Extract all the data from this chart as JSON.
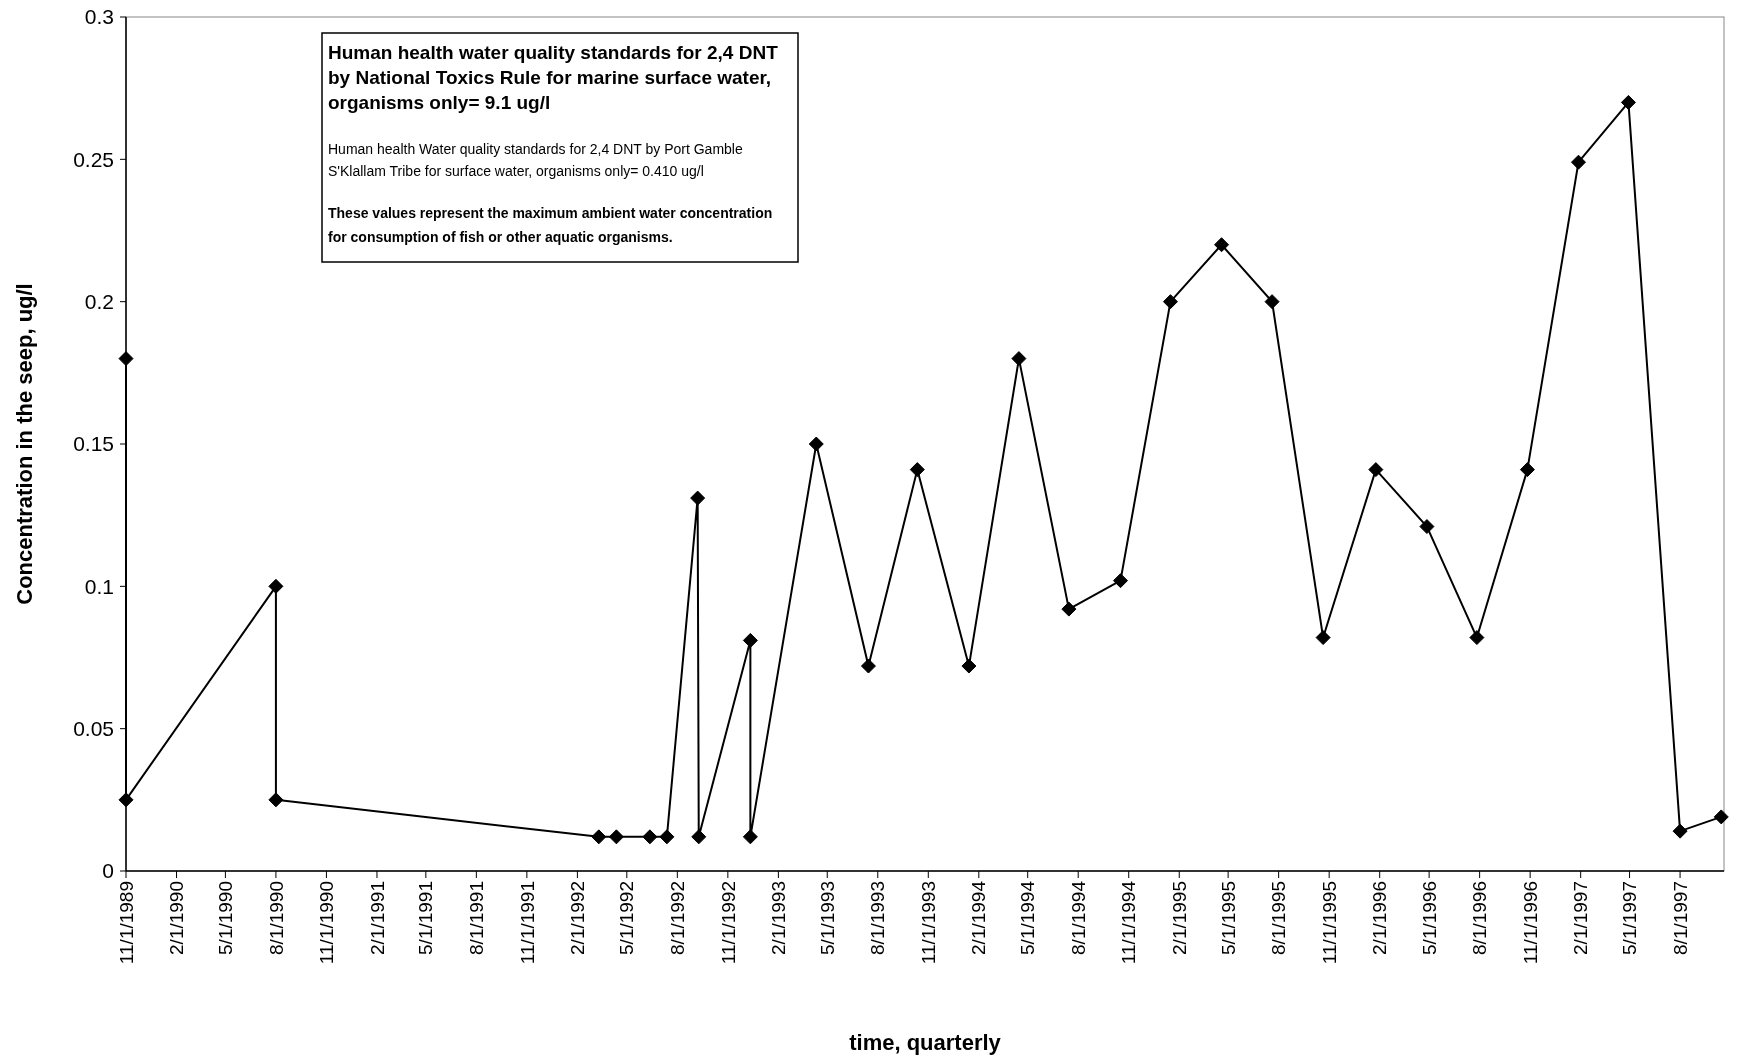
{
  "chart_data": {
    "type": "line",
    "xlabel": "time, quarterly",
    "ylabel": "Concentration in the seep, ug/l",
    "annotations": [
      "Human health water quality standards for 2,4 DNT by National Toxics Rule for marine surface water, organisms only= 9.1 ug/l",
      "Human health Water quality standards for 2,4 DNT by Port Gamble S'Klallam Tribe for surface water, organisms only= 0.410 ug/l",
      "These values represent the maximum ambient water concentration for consumption of fish or other aquatic organisms."
    ],
    "x": [
      "1989-11-01",
      "1989-11-01",
      "1990-08-01",
      "1990-08-01",
      "1992-03-11",
      "1992-04-12",
      "1992-06-12",
      "1992-07-13",
      "1992-09-07",
      "1992-09-09",
      "1992-12-12",
      "1992-12-12",
      "1993-04-11",
      "1993-07-15",
      "1993-10-12",
      "1994-01-14",
      "1994-04-15",
      "1994-07-15",
      "1994-10-17",
      "1995-01-16",
      "1995-04-19",
      "1995-07-20",
      "1995-10-21",
      "1996-01-25",
      "1996-04-27",
      "1996-07-27",
      "1996-10-27",
      "1997-01-28",
      "1997-04-29",
      "1997-08-01",
      "1997-10-15"
    ],
    "series": [
      {
        "color": "#000000",
        "values": [
          0.18,
          0.025,
          0.1,
          0.025,
          0.012,
          0.012,
          0.012,
          0.012,
          0.131,
          0.012,
          0.081,
          0.012,
          0.15,
          0.072,
          0.141,
          0.072,
          0.18,
          0.092,
          0.102,
          0.2,
          0.22,
          0.2,
          0.082,
          0.141,
          0.121,
          0.082,
          0.141,
          0.249,
          0.27,
          0.014,
          0.019
        ]
      }
    ],
    "xlim": [
      "1989-11-01",
      "1997-10-20"
    ],
    "xticks": [
      {
        "value": "1989-11-01",
        "label": "11/1/1989"
      },
      {
        "value": "1990-02-01",
        "label": "2/1/1990"
      },
      {
        "value": "1990-05-01",
        "label": "5/1/1990"
      },
      {
        "value": "1990-08-01",
        "label": "8/1/1990"
      },
      {
        "value": "1990-11-01",
        "label": "11/1/1990"
      },
      {
        "value": "1991-02-01",
        "label": "2/1/1991"
      },
      {
        "value": "1991-05-01",
        "label": "5/1/1991"
      },
      {
        "value": "1991-08-01",
        "label": "8/1/1991"
      },
      {
        "value": "1991-11-01",
        "label": "11/1/1991"
      },
      {
        "value": "1992-02-01",
        "label": "2/1/1992"
      },
      {
        "value": "1992-05-01",
        "label": "5/1/1992"
      },
      {
        "value": "1992-08-01",
        "label": "8/1/1992"
      },
      {
        "value": "1992-11-01",
        "label": "11/1/1992"
      },
      {
        "value": "1993-02-01",
        "label": "2/1/1993"
      },
      {
        "value": "1993-05-01",
        "label": "5/1/1993"
      },
      {
        "value": "1993-08-01",
        "label": "8/1/1993"
      },
      {
        "value": "1993-11-01",
        "label": "11/1/1993"
      },
      {
        "value": "1994-02-01",
        "label": "2/1/1994"
      },
      {
        "value": "1994-05-01",
        "label": "5/1/1994"
      },
      {
        "value": "1994-08-01",
        "label": "8/1/1994"
      },
      {
        "value": "1994-11-01",
        "label": "11/1/1994"
      },
      {
        "value": "1995-02-01",
        "label": "2/1/1995"
      },
      {
        "value": "1995-05-01",
        "label": "5/1/1995"
      },
      {
        "value": "1995-08-01",
        "label": "8/1/1995"
      },
      {
        "value": "1995-11-01",
        "label": "11/1/1995"
      },
      {
        "value": "1996-02-01",
        "label": "2/1/1996"
      },
      {
        "value": "1996-05-01",
        "label": "5/1/1996"
      },
      {
        "value": "1996-08-01",
        "label": "8/1/1996"
      },
      {
        "value": "1996-11-01",
        "label": "11/1/1996"
      },
      {
        "value": "1997-02-01",
        "label": "2/1/1997"
      },
      {
        "value": "1997-05-01",
        "label": "5/1/1997"
      },
      {
        "value": "1997-08-01",
        "label": "8/1/1997"
      }
    ],
    "ylim": [
      0,
      0.3
    ],
    "yticks": [
      0,
      0.05,
      0.1,
      0.15,
      0.2,
      0.25,
      0.3
    ],
    "marker": "diamond",
    "line_style": "solid",
    "grid": false
  }
}
